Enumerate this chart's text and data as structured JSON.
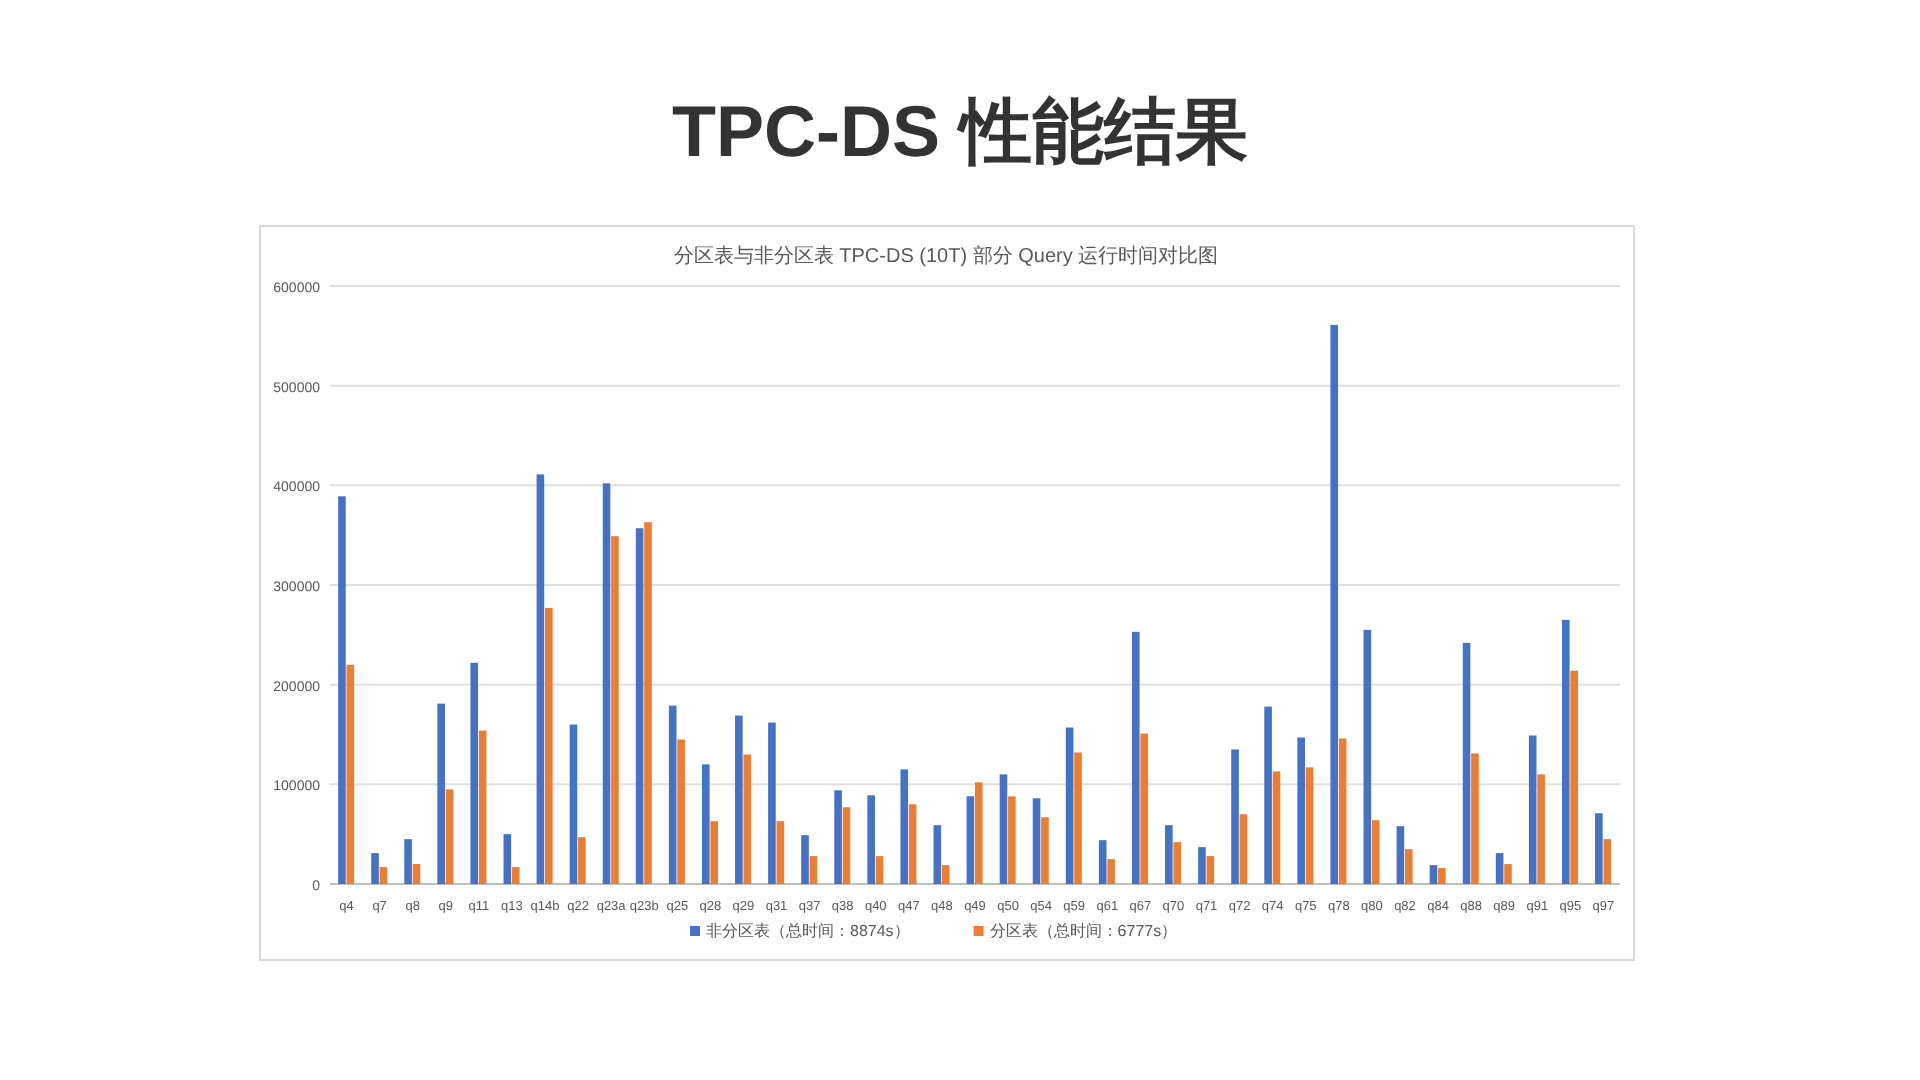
{
  "chart_data": {
    "type": "bar",
    "title": "TPC-DS 性能结果",
    "subtitle": "分区表与非分区表 TPC-DS (10T) 部分 Query 运行时间对比图",
    "categories": [
      "q4",
      "q7",
      "q8",
      "q9",
      "q11",
      "q13",
      "q14b",
      "q22",
      "q23a",
      "q23b",
      "q25",
      "q28",
      "q29",
      "q31",
      "q37",
      "q38",
      "q40",
      "q47",
      "q48",
      "q49",
      "q50",
      "q54",
      "q59",
      "q61",
      "q67",
      "q70",
      "q71",
      "q72",
      "q74",
      "q75",
      "q78",
      "q80",
      "q82",
      "q84",
      "q88",
      "q89",
      "q91",
      "q95",
      "q97"
    ],
    "series": [
      {
        "name": "非分区表（总时间：8874s）",
        "color": "#4472c4",
        "values": [
          389000,
          31000,
          45000,
          181000,
          222000,
          50000,
          411000,
          160000,
          402000,
          357000,
          179000,
          120000,
          169000,
          162000,
          49000,
          94000,
          89000,
          115000,
          59000,
          88000,
          110000,
          86000,
          157000,
          44000,
          253000,
          59000,
          37000,
          135000,
          178000,
          147000,
          561000,
          255000,
          58000,
          19000,
          242000,
          31000,
          149000,
          265000,
          71000
        ]
      },
      {
        "name": "分区表（总时间：6777s）",
        "color": "#ed7d31",
        "values": [
          220000,
          17000,
          20000,
          95000,
          154000,
          17000,
          277000,
          47000,
          349000,
          363000,
          145000,
          63000,
          130000,
          63000,
          28000,
          77000,
          28000,
          80000,
          19000,
          102000,
          88000,
          67000,
          132000,
          25000,
          151000,
          42000,
          28000,
          70000,
          113000,
          117000,
          146000,
          64000,
          35000,
          16000,
          131000,
          20000,
          110000,
          214000,
          45000
        ]
      }
    ],
    "ylim": [
      0,
      600000
    ],
    "yticks": [
      0,
      100000,
      200000,
      300000,
      400000,
      500000,
      600000
    ],
    "grid": "y",
    "legend": "bottom"
  }
}
